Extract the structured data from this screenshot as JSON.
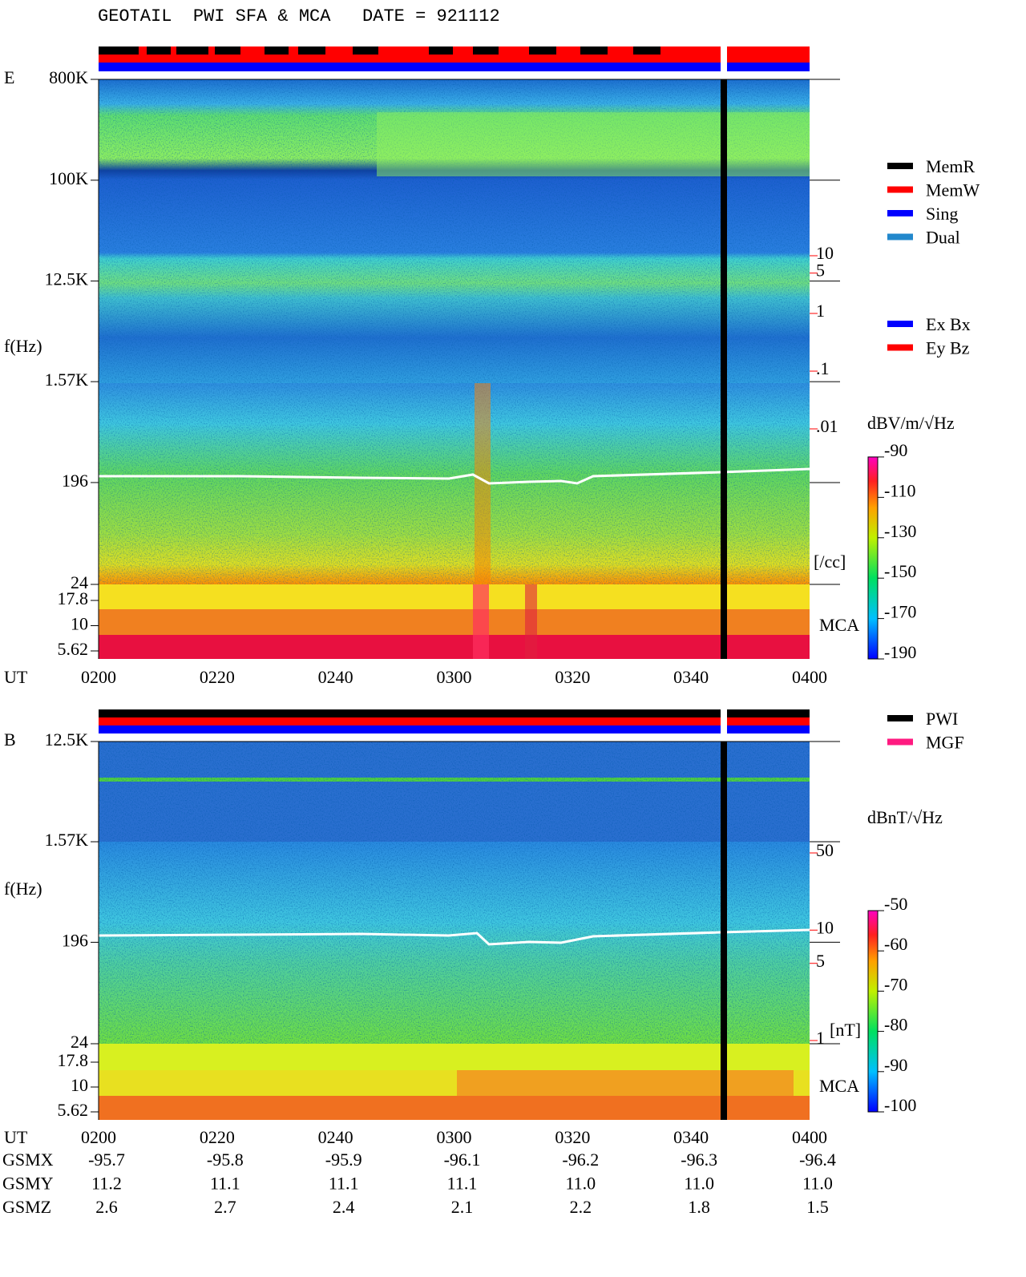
{
  "title": "GEOTAIL  PWI SFA & MCA   DATE = 921112",
  "chart_data": [
    {
      "type": "spectrogram",
      "panel_label": "E",
      "ylabel": "f(Hz)",
      "xlabel": "UT",
      "x_labels": [
        "0200",
        "0220",
        "0240",
        "0300",
        "0320",
        "0340",
        "0400"
      ],
      "ylog": true,
      "ylim": [
        24,
        800000
      ],
      "yticks": [
        {
          "value": 800000,
          "label": "800K"
        },
        {
          "value": 100000,
          "label": "100K"
        },
        {
          "value": 12500,
          "label": "12.5K"
        },
        {
          "value": 1570,
          "label": "1.57K"
        },
        196,
        24
      ],
      "mca_lim": [
        5.62,
        17.8
      ],
      "mca_ticks": [
        17.8,
        10,
        5.62
      ],
      "mca_label": "MCA",
      "clim": [
        -190,
        -90
      ],
      "cticks": [
        -90,
        -110,
        -130,
        -150,
        -170,
        -190
      ],
      "colorbar_label": "dBV/m/√Hz",
      "scale2_lim": [
        0.01,
        10
      ],
      "scale2_ticks": [
        10,
        5,
        1,
        {
          "value": 0.1,
          "label": ".1"
        },
        {
          "value": 0.01,
          "label": ".01"
        }
      ],
      "scale2_unit": "[/cc]",
      "scale2_color": "#ff0000",
      "legend": [
        {
          "name": "MemR",
          "color": "#000000"
        },
        {
          "name": "MemW",
          "color": "#ff0000"
        },
        {
          "name": "Sing",
          "color": "#0000ff"
        },
        {
          "name": "Dual",
          "color": "#2288cc"
        }
      ],
      "legend2": [
        {
          "name": "Ex Bx",
          "color": "#0000ff"
        },
        {
          "name": "Ey Bz",
          "color": "#ff0000"
        }
      ]
    },
    {
      "type": "spectrogram",
      "panel_label": "B",
      "ylabel": "f(Hz)",
      "xlabel": "UT",
      "x_labels": [
        "0200",
        "0220",
        "0240",
        "0300",
        "0320",
        "0340",
        "0400"
      ],
      "ylog": true,
      "ylim": [
        24,
        12500
      ],
      "yticks": [
        {
          "value": 12500,
          "label": "12.5K"
        },
        {
          "value": 1570,
          "label": "1.57K"
        },
        196,
        24
      ],
      "mca_lim": [
        5.62,
        17.8
      ],
      "mca_ticks": [
        17.8,
        10,
        5.62
      ],
      "mca_label": "MCA",
      "clim": [
        -100,
        -50
      ],
      "cticks": [
        -50,
        -60,
        -70,
        -80,
        -90,
        -100
      ],
      "colorbar_label": "dBnT/√Hz",
      "scale2_lim": [
        1,
        50
      ],
      "scale2_ticks": [
        50,
        10,
        5,
        1
      ],
      "scale2_unit": "[nT]",
      "scale2_color": "#ff0000",
      "legend": [
        {
          "name": "PWI",
          "color": "#000000"
        },
        {
          "name": "MGF",
          "color": "#ff1a80"
        }
      ]
    }
  ],
  "orbit": {
    "rows": [
      {
        "label": "GSMX",
        "values": [
          "-95.7",
          "-95.8",
          "-95.9",
          "-96.1",
          "-96.2",
          "-96.3",
          "-96.4"
        ]
      },
      {
        "label": "GSMY",
        "values": [
          "11.2",
          "11.1",
          "11.1",
          "11.1",
          "11.0",
          "11.0",
          "11.0"
        ]
      },
      {
        "label": "GSMZ",
        "values": [
          "2.6",
          "2.7",
          "2.4",
          "2.1",
          "2.2",
          "1.8",
          "1.5"
        ]
      }
    ]
  }
}
